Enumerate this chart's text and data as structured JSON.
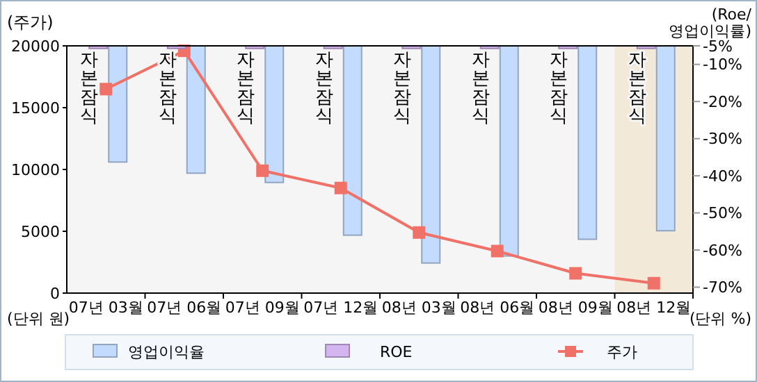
{
  "chart_data": {
    "type": "bar",
    "ylabel": "(주가)",
    "y2label": "(Roe/\n영업이익률)",
    "categories": [
      "07년 03월",
      "07년 06월",
      "07년 09월",
      "07년 12월",
      "08년 03월",
      "08년 06월",
      "08년 09월",
      "08년 12월"
    ],
    "series": [
      {
        "name": "영업이익율",
        "color": "#c2dbff",
        "axis": "y2",
        "values": [
          -36.3,
          -39.3,
          -41.8,
          -56.0,
          -63.5,
          -61.6,
          -57.1,
          -54.8
        ]
      },
      {
        "name": "ROE",
        "color": "#d4b5f0",
        "axis": "y2",
        "values": [
          -5.7,
          -5.7,
          -5.7,
          -5.7,
          -5.7,
          -5.7,
          -5.7,
          -5.7
        ]
      },
      {
        "name": "주가",
        "type": "line",
        "color": "#ef7168",
        "marker": "square",
        "values": [
          16500,
          19600,
          9900,
          8500,
          4900,
          3400,
          1600,
          800
        ]
      }
    ],
    "ylim": [
      0,
      20000
    ],
    "yticks": [
      0,
      5000,
      10000,
      15000,
      20000
    ],
    "y2lim": [
      -71.6,
      -5
    ],
    "y2ticks": [
      {
        "value": -5,
        "label": "-5%"
      },
      {
        "value": -10,
        "label": "-10%"
      },
      {
        "value": -20,
        "label": "-20%"
      },
      {
        "value": -30,
        "label": "-30%"
      },
      {
        "value": -40,
        "label": "-40%"
      },
      {
        "value": -50,
        "label": "-50%"
      },
      {
        "value": -60,
        "label": "-60%"
      },
      {
        "value": -70,
        "label": "-70%"
      }
    ],
    "bands": [
      {
        "axis": "x",
        "from": "08년 12월",
        "to": "08년 12월",
        "color": "#f3e9d9"
      }
    ],
    "annotations": [
      "(단위 원)",
      "(단위 %)",
      {
        "text": "자본잠식",
        "x": "07년 03월"
      },
      {
        "text": "자본잠식",
        "x": "07년 06월"
      },
      {
        "text": "자본잠식",
        "x": "07년 09월"
      },
      {
        "text": "자본잠식",
        "x": "07년 12월"
      },
      {
        "text": "자본잠식",
        "x": "08년 03월"
      },
      {
        "text": "자본잠식",
        "x": "08년 06월"
      },
      {
        "text": "자본잠식",
        "x": "08년 09월"
      },
      {
        "text": "자본잠식",
        "x": "08년 12월"
      }
    ],
    "legend": "bottom",
    "grid": false
  }
}
